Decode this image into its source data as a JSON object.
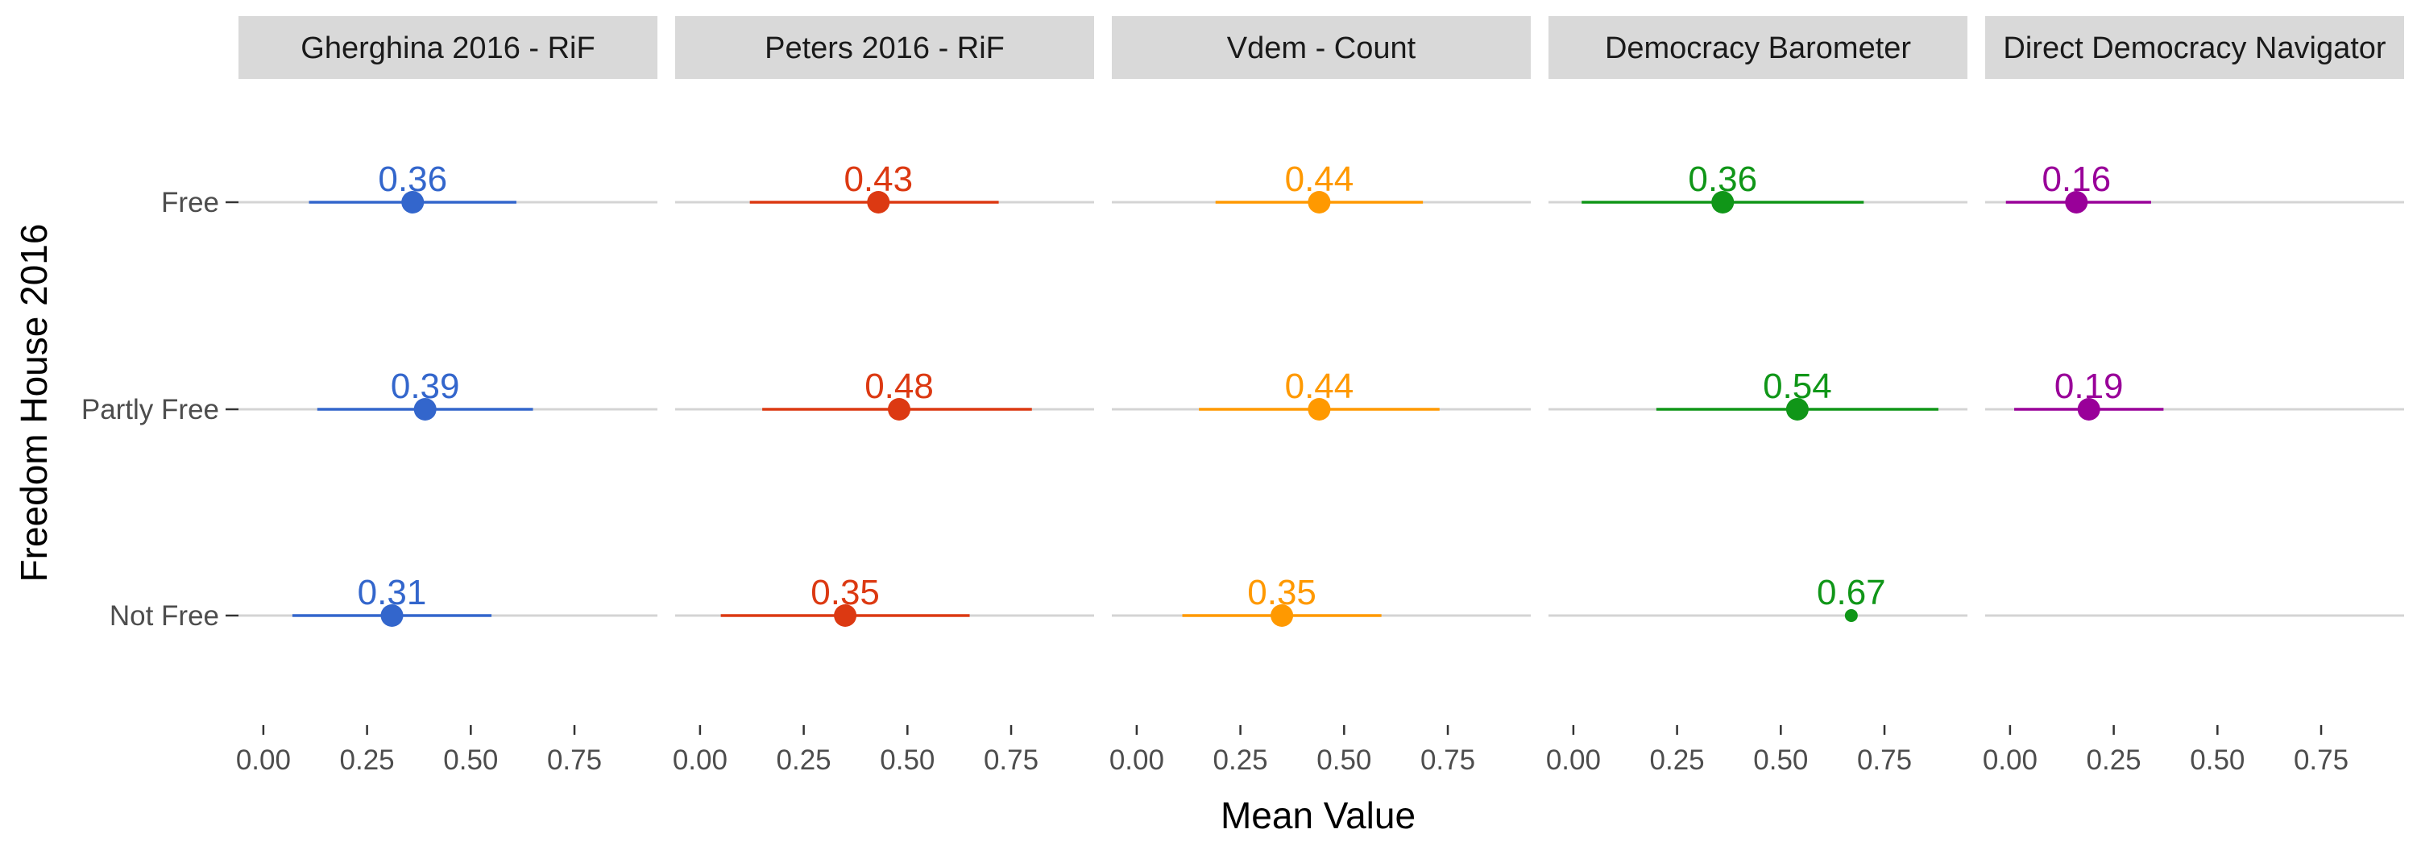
{
  "chart_data": {
    "type": "dot-interval",
    "xlabel": "Mean Value",
    "ylabel": "Freedom House 2016",
    "categories": [
      "Free",
      "Partly Free",
      "Not Free"
    ],
    "x_ticks": [
      "0.00",
      "0.25",
      "0.50",
      "0.75"
    ],
    "xlim": [
      -0.06,
      0.95
    ],
    "grid": "horizontal lines only",
    "legend": "none",
    "colors": {
      "panel_strip": "#d9d9d9",
      "gridline": "#d4d4d4",
      "background": "#ffffff"
    },
    "panels": [
      {
        "title": "Gherghina 2016 - RiF",
        "color": "#3366cc",
        "points": [
          {
            "category": "Free",
            "mean": 0.36,
            "label": "0.36",
            "low": 0.11,
            "high": 0.61
          },
          {
            "category": "Partly Free",
            "mean": 0.39,
            "label": "0.39",
            "low": 0.13,
            "high": 0.65
          },
          {
            "category": "Not Free",
            "mean": 0.31,
            "label": "0.31",
            "low": 0.07,
            "high": 0.55
          }
        ]
      },
      {
        "title": "Peters 2016 - RiF",
        "color": "#dc3912",
        "points": [
          {
            "category": "Free",
            "mean": 0.43,
            "label": "0.43",
            "low": 0.12,
            "high": 0.72
          },
          {
            "category": "Partly Free",
            "mean": 0.48,
            "label": "0.48",
            "low": 0.15,
            "high": 0.8
          },
          {
            "category": "Not Free",
            "mean": 0.35,
            "label": "0.35",
            "low": 0.05,
            "high": 0.65
          }
        ]
      },
      {
        "title": "Vdem - Count",
        "color": "#ff9900",
        "points": [
          {
            "category": "Free",
            "mean": 0.44,
            "label": "0.44",
            "low": 0.19,
            "high": 0.69
          },
          {
            "category": "Partly Free",
            "mean": 0.44,
            "label": "0.44",
            "low": 0.15,
            "high": 0.73
          },
          {
            "category": "Not Free",
            "mean": 0.35,
            "label": "0.35",
            "low": 0.11,
            "high": 0.59
          }
        ]
      },
      {
        "title": "Democracy Barometer",
        "color": "#109618",
        "points": [
          {
            "category": "Free",
            "mean": 0.36,
            "label": "0.36",
            "low": 0.02,
            "high": 0.7
          },
          {
            "category": "Partly Free",
            "mean": 0.54,
            "label": "0.54",
            "low": 0.2,
            "high": 0.88
          },
          {
            "category": "Not Free",
            "mean": 0.67,
            "label": "0.67",
            "low": 0.67,
            "high": 0.67,
            "single": true
          }
        ]
      },
      {
        "title": "Direct Democracy Navigator",
        "color": "#990099",
        "points": [
          {
            "category": "Free",
            "mean": 0.16,
            "label": "0.16",
            "low": -0.01,
            "high": 0.34
          },
          {
            "category": "Partly Free",
            "mean": 0.19,
            "label": "0.19",
            "low": 0.01,
            "high": 0.37
          }
        ]
      }
    ]
  }
}
